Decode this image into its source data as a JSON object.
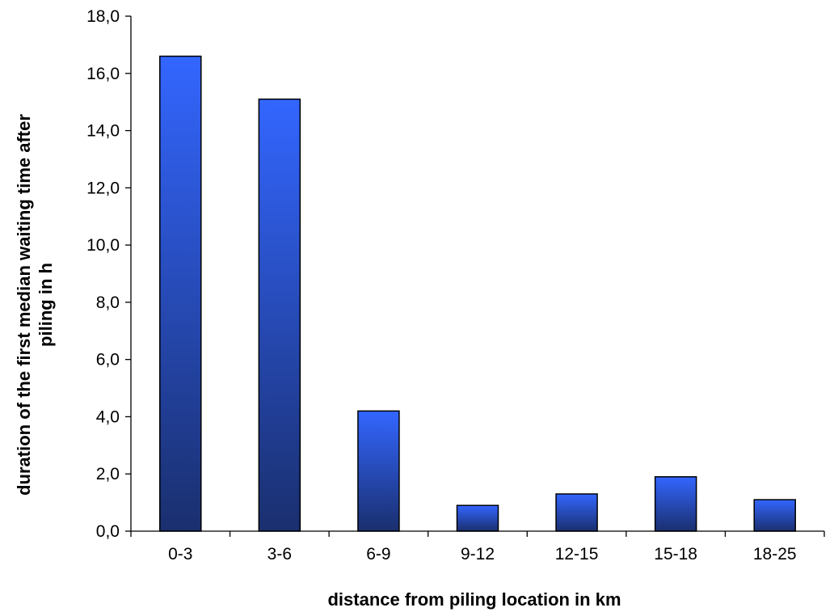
{
  "chart_data": {
    "type": "bar",
    "categories": [
      "0-3",
      "3-6",
      "6-9",
      "9-12",
      "12-15",
      "15-18",
      "18-25"
    ],
    "values": [
      16.6,
      15.1,
      4.2,
      0.9,
      1.3,
      1.9,
      1.1
    ],
    "title": "",
    "xlabel": "distance from piling location in km",
    "ylabel_lines": [
      "duration of the first median waiting time after",
      "piling in h"
    ],
    "ylim": [
      0,
      18
    ],
    "yticks": [
      "0,0",
      "2,0",
      "4,0",
      "6,0",
      "8,0",
      "10,0",
      "12,0",
      "14,0",
      "16,0",
      "18,0"
    ],
    "grid": false,
    "legend": "none",
    "colors": {
      "bar_top": "#3366ff",
      "bar_bottom": "#1a2f6e",
      "outline": "#000000"
    }
  }
}
